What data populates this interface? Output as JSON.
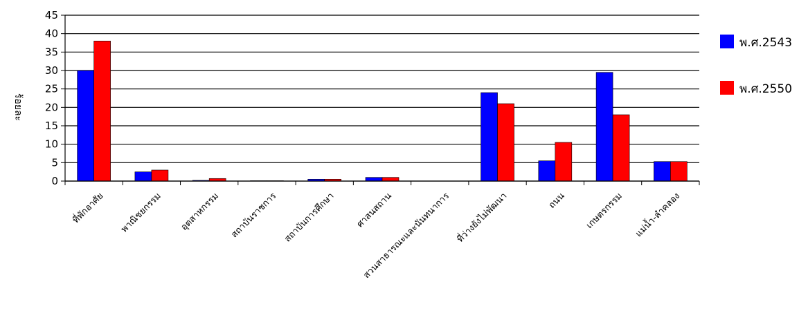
{
  "chart_data": {
    "type": "bar",
    "title": "",
    "xlabel": "",
    "ylabel": "ร้อยละ",
    "ylim": [
      0,
      45
    ],
    "yticks": [
      0,
      5,
      10,
      15,
      20,
      25,
      30,
      35,
      40,
      45
    ],
    "grid": true,
    "legend_position": "right",
    "categories": [
      "ที่พักอาศัย",
      "พาณิชยกรรม",
      "อุตสาหกรรม",
      "สถาบันราชการ",
      "สถาบันการศึกษา",
      "ศาสนสถาน",
      "สวนสาธารณะและนันทนาการ",
      "ที่ว่างยังไม่พัฒนา",
      "ถนน",
      "เกษตรกรรม",
      "แม่น้ำ-ลำคลอง"
    ],
    "series": [
      {
        "name": "พ.ศ.2543",
        "color": "#0000ff",
        "values": [
          30,
          2.5,
          0.2,
          0.1,
          0.5,
          1.0,
          0,
          24,
          5.5,
          29.5,
          5.3
        ]
      },
      {
        "name": "พ.ศ.2550",
        "color": "#ff0000",
        "values": [
          38,
          3,
          0.7,
          0.1,
          0.5,
          1.0,
          0,
          21,
          10.5,
          18,
          5.3
        ]
      }
    ]
  }
}
